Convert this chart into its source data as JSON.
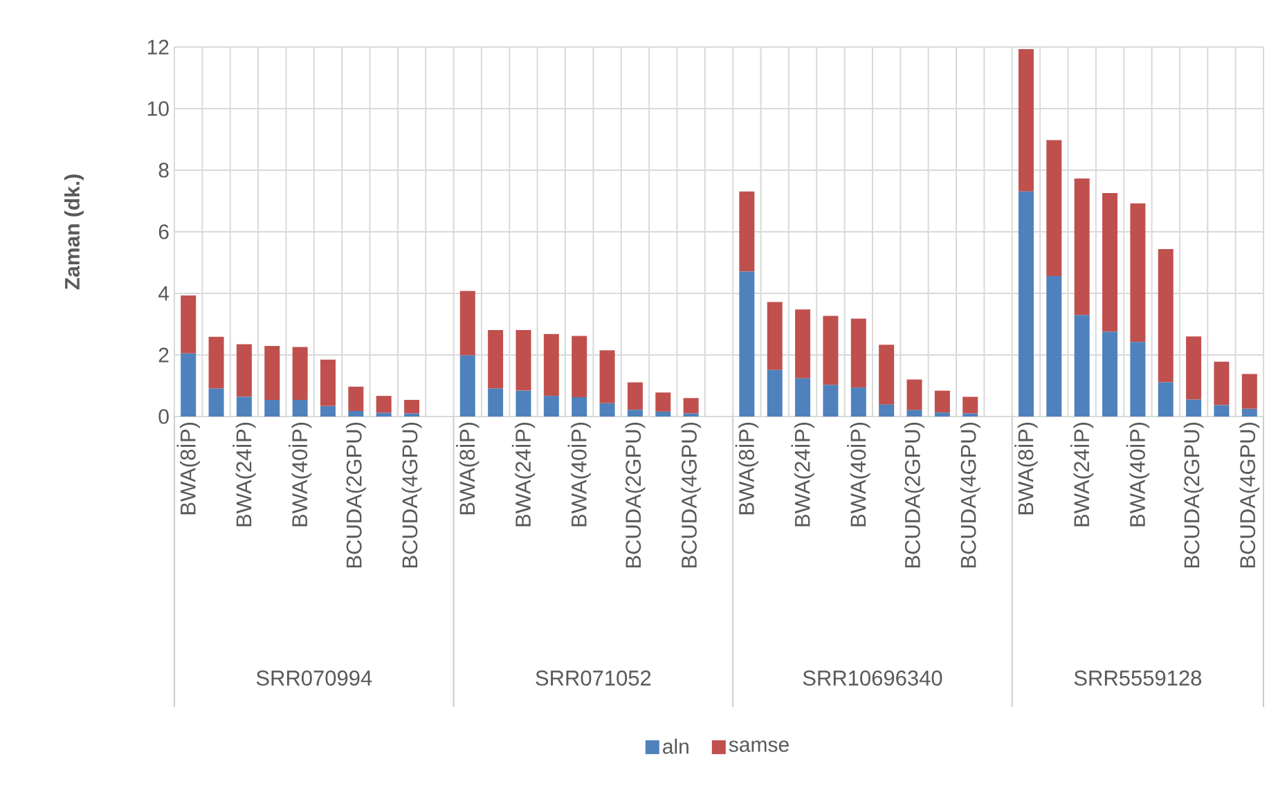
{
  "chart_data": {
    "type": "bar",
    "stacked": true,
    "ylabel": "Zaman (dk.)",
    "categories": [
      "BWA(8İP)",
      null,
      "BWA(24İP)",
      null,
      "BWA(40İP)",
      null,
      "BCUDA(2GPU)",
      null,
      "BCUDA(4GPU)",
      null,
      "BWA(8İP)",
      null,
      "BWA(24İP)",
      null,
      "BWA(40İP)",
      null,
      "BCUDA(2GPU)",
      null,
      "BCUDA(4GPU)",
      null,
      "BWA(8İP)",
      null,
      "BWA(24İP)",
      null,
      "BWA(40İP)",
      null,
      "BCUDA(2GPU)",
      null,
      "BCUDA(4GPU)",
      null,
      "BWA(8İP)",
      null,
      "BWA(24İP)",
      null,
      "BWA(40İP)",
      null,
      "BCUDA(2GPU)",
      null,
      "BCUDA(4GPU)"
    ],
    "series": [
      {
        "name": "aln",
        "color": "#4f81bd",
        "values": [
          2.05,
          0.91,
          0.64,
          0.54,
          0.54,
          0.34,
          0.18,
          0.12,
          0.1,
          null,
          1.99,
          0.91,
          0.84,
          0.67,
          0.63,
          0.43,
          0.22,
          0.16,
          0.1,
          null,
          4.71,
          1.51,
          1.24,
          1.03,
          0.94,
          0.39,
          0.21,
          0.13,
          0.1,
          null,
          7.31,
          4.56,
          3.3,
          2.75,
          2.42,
          1.11,
          0.55,
          0.37,
          0.25
        ]
      },
      {
        "name": "samse",
        "color": "#c0504d",
        "values": [
          1.88,
          1.68,
          1.71,
          1.75,
          1.72,
          1.51,
          0.79,
          0.55,
          0.44,
          null,
          2.09,
          1.9,
          1.97,
          2.01,
          1.99,
          1.72,
          0.89,
          0.62,
          0.5,
          null,
          2.6,
          2.21,
          2.24,
          2.24,
          2.24,
          1.94,
          0.99,
          0.71,
          0.54,
          null,
          4.62,
          4.42,
          4.43,
          4.51,
          4.5,
          4.33,
          2.05,
          1.41,
          1.13
        ]
      }
    ],
    "annotations": [
      "SRR070994",
      "SRR071052",
      "SRR10696340",
      "SRR5559128"
    ],
    "ylim": [
      0,
      12
    ],
    "yticks": [
      0,
      2,
      4,
      6,
      8,
      10,
      12
    ],
    "grid": true,
    "legend": "bottom"
  }
}
